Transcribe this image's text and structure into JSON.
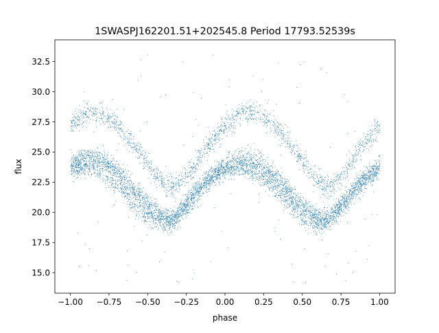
{
  "chart_data": {
    "type": "scatter",
    "title": "1SWASPJ162201.51+202545.8 Period 17793.52539s",
    "xlabel": "phase",
    "ylabel": "flux",
    "xlim": [
      -1.1,
      1.1
    ],
    "ylim": [
      13.3,
      34.3
    ],
    "xticks": [
      -1.0,
      -0.75,
      -0.5,
      -0.25,
      0.0,
      0.25,
      0.5,
      0.75,
      1.0
    ],
    "xtick_labels": [
      "−1.00",
      "−0.75",
      "−0.50",
      "−0.25",
      "0.00",
      "0.25",
      "0.50",
      "0.75",
      "1.00"
    ],
    "yticks": [
      15.0,
      17.5,
      20.0,
      22.5,
      25.0,
      27.5,
      30.0,
      32.5
    ],
    "ytick_labels": [
      "15.0",
      "17.5",
      "20.0",
      "22.5",
      "25.0",
      "27.5",
      "30.0",
      "32.5"
    ],
    "grid": false,
    "legend": false,
    "marker_color": "#1f77b4",
    "series": [
      {
        "x": [
          -1.0,
          -0.9,
          -0.8,
          -0.7,
          -0.6,
          -0.5,
          -0.4,
          -0.35,
          -0.3,
          -0.2,
          -0.1,
          0.0,
          0.1,
          0.2,
          0.3,
          0.4,
          0.5,
          0.6,
          0.65,
          0.7,
          0.8,
          0.9,
          1.0
        ],
        "y": [
          24.0,
          24.5,
          24.3,
          23.5,
          22.0,
          20.5,
          19.6,
          19.4,
          19.8,
          21.3,
          22.8,
          23.8,
          24.3,
          24.1,
          23.3,
          21.9,
          20.4,
          19.6,
          19.4,
          19.8,
          21.2,
          22.7,
          23.8
        ]
      },
      {
        "x": [
          -1.0,
          -0.9,
          -0.8,
          -0.7,
          -0.6,
          -0.5,
          -0.4,
          -0.35,
          -0.3,
          -0.2,
          -0.1,
          0.0,
          0.1,
          0.2,
          0.3,
          0.4,
          0.5,
          0.6,
          0.65,
          0.7,
          0.8,
          0.9,
          1.0
        ],
        "y": [
          27.3,
          28.2,
          28.2,
          27.3,
          25.8,
          24.0,
          22.5,
          22.0,
          22.3,
          23.8,
          25.7,
          27.2,
          28.2,
          28.3,
          27.5,
          26.0,
          24.2,
          22.6,
          22.1,
          22.3,
          23.9,
          25.8,
          27.2
        ]
      },
      {
        "x": [
          -1.0,
          -0.9,
          -0.8,
          -0.7,
          -0.6,
          -0.5,
          -0.4,
          -0.35,
          -0.3,
          -0.2,
          -0.1,
          0.0,
          0.1,
          0.2,
          0.3,
          0.4,
          0.5,
          0.6,
          0.65,
          0.7,
          0.8,
          0.9,
          1.0
        ],
        "y": [
          23.5,
          23.8,
          23.3,
          22.3,
          20.8,
          19.5,
          19.0,
          19.2,
          19.9,
          21.6,
          23.0,
          23.6,
          23.7,
          23.2,
          22.3,
          20.9,
          19.6,
          19.0,
          19.1,
          19.8,
          21.5,
          22.9,
          23.5
        ]
      }
    ]
  }
}
